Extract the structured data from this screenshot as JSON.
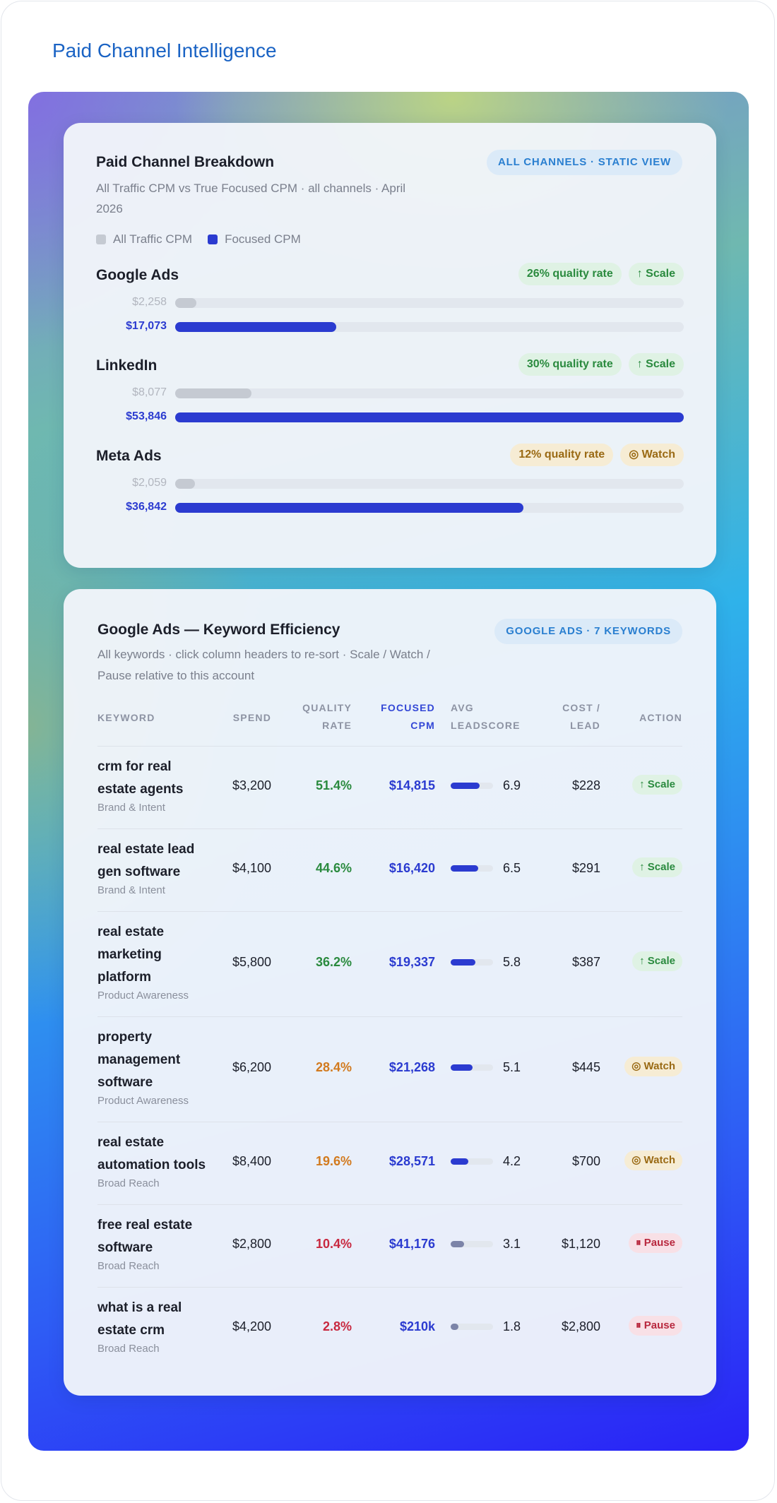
{
  "page": {
    "title": "Paid Channel Intelligence"
  },
  "breakdown": {
    "title": "Paid Channel Breakdown",
    "subtitle_line1": "All Traffic CPM vs True Focused CPM · all channels · April",
    "subtitle_line2": "2026",
    "pill": "ALL CHANNELS · STATIC VIEW",
    "legend": {
      "all": "All Traffic CPM",
      "focused": "Focused CPM"
    },
    "max_value": 53846,
    "channels": [
      {
        "name": "Google Ads",
        "quality": "26% quality rate",
        "action": "↑ Scale",
        "action_type": "scale",
        "all_label": "$2,258",
        "all_value": 2258,
        "focused_label": "$17,073",
        "focused_value": 17073
      },
      {
        "name": "LinkedIn",
        "quality": "30% quality rate",
        "action": "↑ Scale",
        "action_type": "scale",
        "all_label": "$8,077",
        "all_value": 8077,
        "focused_label": "$53,846",
        "focused_value": 53846
      },
      {
        "name": "Meta Ads",
        "quality": "12% quality rate",
        "action": "◎ Watch",
        "action_type": "watch",
        "all_label": "$2,059",
        "all_value": 2059,
        "focused_label": "$36,842",
        "focused_value": 36842
      }
    ]
  },
  "keywords": {
    "title": "Google Ads — Keyword Efficiency",
    "subtitle_line1": "All keywords · click column headers to re-sort · Scale / Watch /",
    "subtitle_line2": "Pause relative to this account",
    "pill": "GOOGLE ADS · 7 KEYWORDS",
    "headers": {
      "keyword": "KEYWORD",
      "spend": "SPEND",
      "quality_1": "QUALITY",
      "quality_2": "RATE",
      "cpm_1": "FOCUSED",
      "cpm_2": "CPM",
      "lead_1": "AVG",
      "lead_2": "LEADSCORE",
      "cost_1": "COST /",
      "cost_2": "LEAD",
      "action": "ACTION"
    },
    "rows": [
      {
        "kw1": "crm for real",
        "kw2": "estate agents",
        "kw3": "",
        "category": "Brand & Intent",
        "spend": "$3,200",
        "quality": "51.4%",
        "quality_level": "green",
        "cpm": "$14,815",
        "leadscore": "6.9",
        "leadscore_value": 6.9,
        "cost": "$228",
        "action": "↑ Scale",
        "action_type": "scale"
      },
      {
        "kw1": "real estate lead",
        "kw2": "gen software",
        "kw3": "",
        "category": "Brand & Intent",
        "spend": "$4,100",
        "quality": "44.6%",
        "quality_level": "green",
        "cpm": "$16,420",
        "leadscore": "6.5",
        "leadscore_value": 6.5,
        "cost": "$291",
        "action": "↑ Scale",
        "action_type": "scale"
      },
      {
        "kw1": "real estate",
        "kw2": "marketing",
        "kw3": "platform",
        "category": "Product Awareness",
        "spend": "$5,800",
        "quality": "36.2%",
        "quality_level": "green",
        "cpm": "$19,337",
        "leadscore": "5.8",
        "leadscore_value": 5.8,
        "cost": "$387",
        "action": "↑ Scale",
        "action_type": "scale"
      },
      {
        "kw1": "property",
        "kw2": "management",
        "kw3": "software",
        "category": "Product Awareness",
        "spend": "$6,200",
        "quality": "28.4%",
        "quality_level": "amber",
        "cpm": "$21,268",
        "leadscore": "5.1",
        "leadscore_value": 5.1,
        "cost": "$445",
        "action": "◎ Watch",
        "action_type": "watch"
      },
      {
        "kw1": "real estate",
        "kw2": "automation tools",
        "kw3": "",
        "category": "Broad Reach",
        "spend": "$8,400",
        "quality": "19.6%",
        "quality_level": "amber",
        "cpm": "$28,571",
        "leadscore": "4.2",
        "leadscore_value": 4.2,
        "cost": "$700",
        "action": "◎ Watch",
        "action_type": "watch"
      },
      {
        "kw1": "free real estate",
        "kw2": "software",
        "kw3": "",
        "category": "Broad Reach",
        "spend": "$2,800",
        "quality": "10.4%",
        "quality_level": "red",
        "cpm": "$41,176",
        "leadscore": "3.1",
        "leadscore_value": 3.1,
        "cost": "$1,120",
        "action": "⏸ Pause",
        "action_type": "pause"
      },
      {
        "kw1": "what is a real",
        "kw2": "estate crm",
        "kw3": "",
        "category": "Broad Reach",
        "spend": "$4,200",
        "quality": "2.8%",
        "quality_level": "red",
        "cpm": "$210k",
        "leadscore": "1.8",
        "leadscore_value": 1.8,
        "cost": "$2,800",
        "action": "⏸ Pause",
        "action_type": "pause"
      }
    ]
  }
}
